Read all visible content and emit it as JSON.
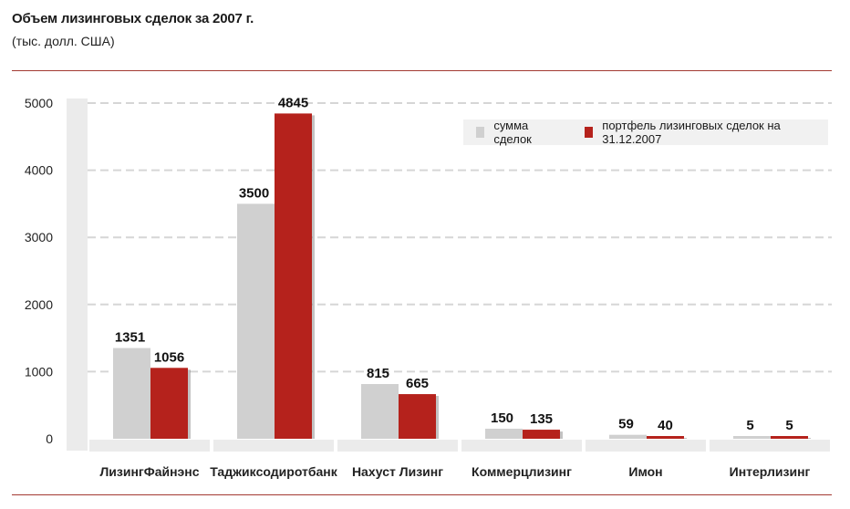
{
  "title": "Объем лизинговых сделок за 2007 г.",
  "subtitle": "(тыс. долл. США)",
  "colors": {
    "series_1": "#d0d0d0",
    "series_2": "#b5221c",
    "grid": "#d6d6d6",
    "accent": "#a33a32"
  },
  "legend": [
    {
      "label": "сумма сделок"
    },
    {
      "label": "портфель лизинговых сделок на 31.12.2007"
    }
  ],
  "chart_data": {
    "type": "bar",
    "title": "Объем лизинговых сделок за 2007 г.",
    "subtitle": "(тыс. долл. США)",
    "categories": [
      "ЛизингФайнэнс",
      "Таджикcодиротбанк",
      "Нахуст Лизинг",
      "Коммерцлизинг",
      "Имон",
      "Интерлизинг"
    ],
    "series": [
      {
        "name": "сумма сделок",
        "values": [
          1351,
          3500,
          815,
          150,
          59,
          5
        ]
      },
      {
        "name": "портфель лизинговых сделок на 31.12.2007",
        "values": [
          1056,
          4845,
          665,
          135,
          40,
          5
        ]
      }
    ],
    "ylim": [
      0,
      5000
    ],
    "yticks": [
      0,
      1000,
      2000,
      3000,
      4000,
      5000
    ],
    "grid": true,
    "legend_position": "top-right"
  }
}
